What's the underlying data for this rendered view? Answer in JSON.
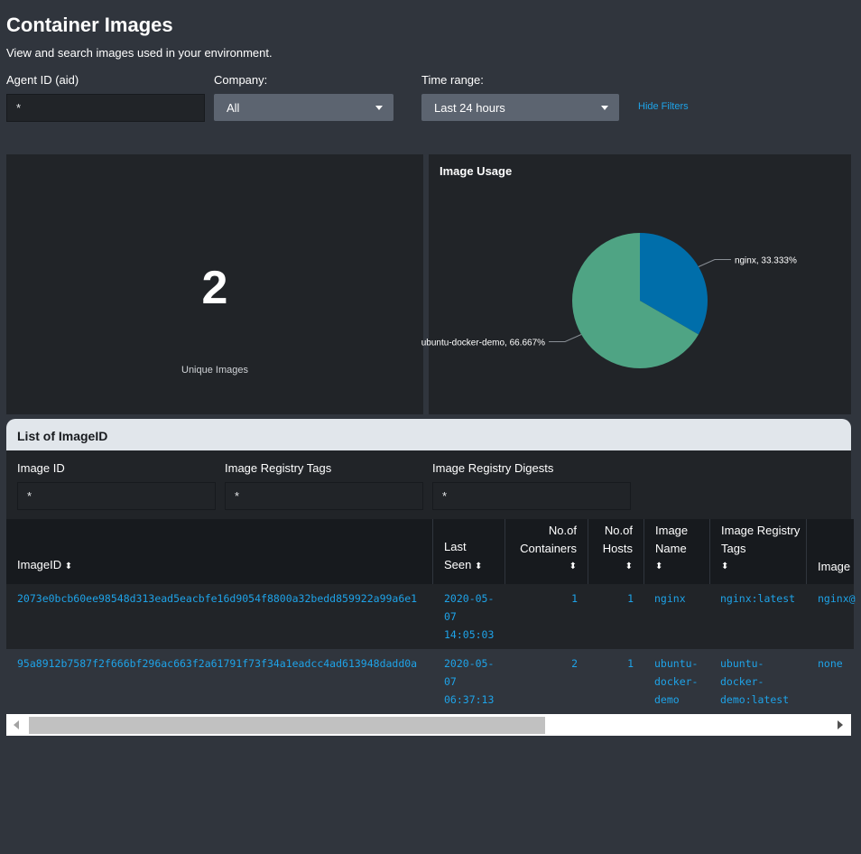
{
  "page": {
    "title": "Container Images",
    "subtitle": "View and search images used in your environment."
  },
  "filters": {
    "agent_label": "Agent ID (aid)",
    "agent_value": "*",
    "company_label": "Company:",
    "company_value": "All",
    "time_label": "Time range:",
    "time_value": "Last 24 hours",
    "hide_filters": "Hide Filters"
  },
  "single_value": {
    "value": "2",
    "label": "Unique Images"
  },
  "chart_data": {
    "type": "pie",
    "title": "Image Usage",
    "slices": [
      {
        "label": "nginx, 33.333%",
        "name": "nginx",
        "value": 33.333,
        "color": "#006eaa"
      },
      {
        "label": "ubuntu-docker-demo, 66.667%",
        "name": "ubuntu-docker-demo",
        "value": 66.667,
        "color": "#4fa484"
      }
    ]
  },
  "list": {
    "title": "List of ImageID",
    "filters": [
      {
        "label": "Image ID",
        "value": "*"
      },
      {
        "label": "Image Registry Tags",
        "value": "*"
      },
      {
        "label": "Image Registry Digests",
        "value": "*"
      }
    ],
    "columns": [
      {
        "label": "ImageID"
      },
      {
        "label": "Last Seen"
      },
      {
        "label": "No.of Containers"
      },
      {
        "label": "No.of Hosts"
      },
      {
        "label": "Image Name"
      },
      {
        "label": "Image Registry Tags"
      },
      {
        "label": "Image"
      }
    ],
    "rows": [
      {
        "image_id": "2073e0bcb60ee98548d313ead5eacbfe16d9054f8800a32bedd859922a99a6e1",
        "last_seen": "2020-05-\n07\n14:05:03",
        "containers": "1",
        "hosts": "1",
        "image_name": "nginx",
        "registry_tags": "nginx:latest",
        "digests": "nginx@"
      },
      {
        "image_id": "95a8912b7587f2f666bf296ac663f2a61791f73f34a1eadcc4ad613948dadd0a",
        "last_seen": "2020-05-\n07\n06:37:13",
        "containers": "2",
        "hosts": "1",
        "image_name": "ubuntu-\ndocker-\ndemo",
        "registry_tags": "ubuntu-\ndocker-\ndemo:latest",
        "digests": "none"
      }
    ]
  }
}
